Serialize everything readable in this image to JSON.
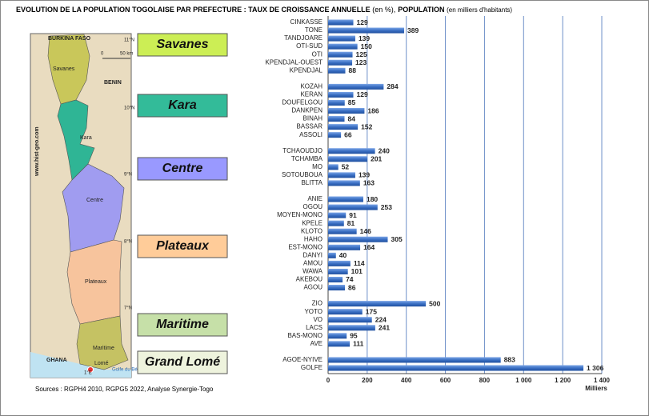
{
  "chart_data": {
    "type": "bar",
    "orientation": "horizontal",
    "title": "EVOLUTION DE LA POPULATION TOGOLAISE PAR PREFECTURE : TAUX DE CROISSANCE ANNUELLE",
    "title_unit_1": "(en %),",
    "title_part_2": "POPULATION",
    "title_unit_2": "(en milliers d'habitants)",
    "xlabel": "Milliers",
    "source": "Sources : RGPH4 2010, RGPG5 2022, Analyse Synergie-Togo",
    "color": "#3b70c4",
    "categories": [
      "CINKASSE",
      "TONE",
      "TANDJOARE",
      "OTI-SUD",
      "OTI",
      "KPENDJAL-OUEST",
      "KPENDJAL",
      null,
      "KOZAH",
      "KERAN",
      "DOUFELGOU",
      "DANKPEN",
      "BINAH",
      "BASSAR",
      "ASSOLI",
      null,
      "TCHAOUDJO",
      "TCHAMBA",
      "MO",
      "SOTOUBOUA",
      "BLITTA",
      null,
      "ANIE",
      "OGOU",
      "MOYEN-MONO",
      "KPELE",
      "KLOTO",
      "HAHO",
      "EST-MONO",
      "DANYI",
      "AMOU",
      "WAWA",
      "AKEBOU",
      "AGOU",
      null,
      "ZIO",
      "YOTO",
      "VO",
      "LACS",
      "BAS-MONO",
      "AVE",
      null,
      "AGOE-NYIVE",
      "GOLFE"
    ],
    "values": [
      129,
      389,
      139,
      150,
      125,
      123,
      88,
      null,
      284,
      129,
      85,
      186,
      84,
      152,
      66,
      null,
      240,
      201,
      52,
      139,
      163,
      null,
      180,
      253,
      91,
      81,
      146,
      305,
      164,
      40,
      114,
      101,
      74,
      86,
      null,
      500,
      175,
      224,
      241,
      95,
      111,
      null,
      883,
      1306
    ],
    "value_labels": [
      null,
      null,
      null,
      null,
      null,
      null,
      null,
      null,
      null,
      null,
      null,
      null,
      null,
      null,
      null,
      null,
      null,
      null,
      null,
      null,
      null,
      null,
      null,
      null,
      null,
      null,
      null,
      null,
      null,
      null,
      null,
      null,
      null,
      null,
      null,
      null,
      null,
      null,
      null,
      null,
      null,
      null,
      null,
      "1 306"
    ],
    "xlim": [
      0,
      1400
    ],
    "xticks": [
      0,
      200,
      400,
      600,
      800,
      {
        "value": 1000,
        "label": "1 000"
      },
      {
        "value": 1200,
        "label": "1 200"
      },
      {
        "value": 1400,
        "label": "1 400"
      }
    ],
    "grid": true
  },
  "regions": [
    "Savanes",
    "Kara",
    "Centre",
    "Plateaux",
    "Maritime",
    "Grand Lomé"
  ],
  "map": {
    "burkina": "BURKINA FASO",
    "benin": "BENIN",
    "ghana": "GHANA",
    "savanes": "Savanes",
    "kara": "Kara",
    "centre": "Centre",
    "plateaux": "Plateaux",
    "maritime": "Maritime",
    "lome": "Lomé",
    "golfe": "Golfe du Bénin",
    "site": "www.hist-geo.com",
    "lat11": "11°N",
    "lat10": "10°N",
    "lat9": "9°N",
    "lat8": "8°N",
    "lat7": "7°N",
    "lon1": "1°E",
    "scale0": "0",
    "scale50": "50 km"
  }
}
